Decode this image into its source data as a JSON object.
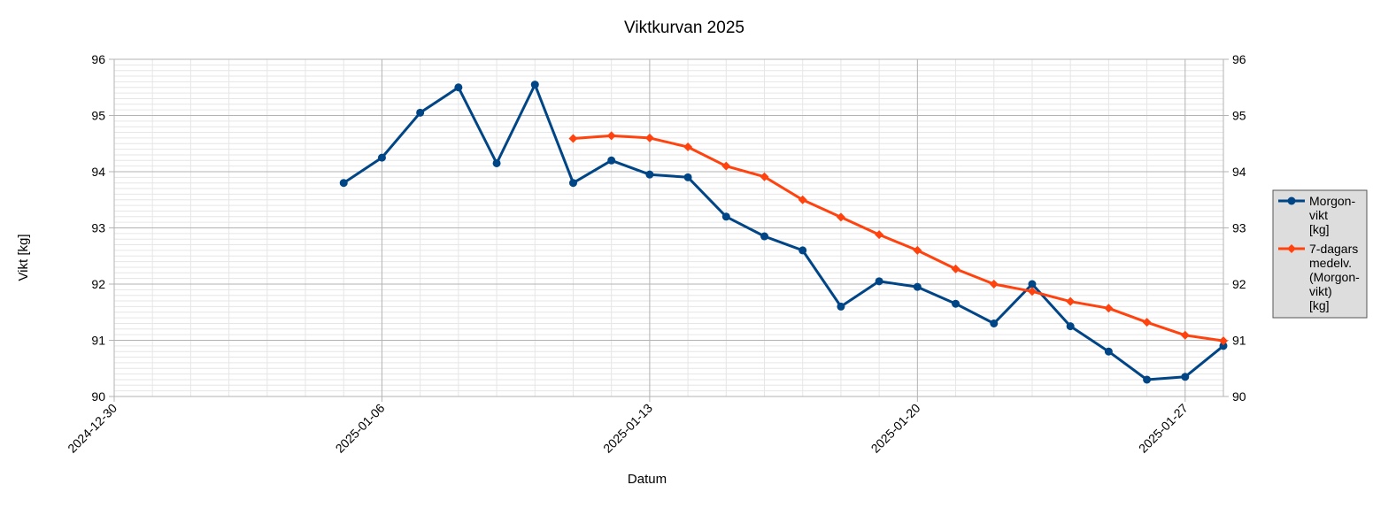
{
  "chart_data": {
    "type": "line",
    "title": "Viktkurvan 2025",
    "xlabel": "Datum",
    "ylabel": "Vikt [kg]",
    "xlim": [
      "2024-12-30",
      "2025-01-28"
    ],
    "ylim": [
      90,
      96
    ],
    "y_major_step": 1,
    "y_minor_step": 0.1,
    "x_minor_step_days": 1,
    "y_ticks": [
      "90",
      "91",
      "92",
      "93",
      "94",
      "95",
      "96"
    ],
    "x_ticks": [
      "2024-12-30",
      "2025-01-06",
      "2025-01-13",
      "2025-01-20",
      "2025-01-27"
    ],
    "grid": true,
    "secondary_y_axis": true,
    "legend_position": "right",
    "series": [
      {
        "name": "Morgon-vikt [kg]",
        "legend_lines": [
          "Morgon-",
          "vikt",
          "[kg]"
        ],
        "color": "#004586",
        "marker": "circle",
        "x": [
          "2025-01-05",
          "2025-01-06",
          "2025-01-07",
          "2025-01-08",
          "2025-01-09",
          "2025-01-10",
          "2025-01-11",
          "2025-01-12",
          "2025-01-13",
          "2025-01-14",
          "2025-01-15",
          "2025-01-16",
          "2025-01-17",
          "2025-01-18",
          "2025-01-19",
          "2025-01-20",
          "2025-01-21",
          "2025-01-22",
          "2025-01-23",
          "2025-01-24",
          "2025-01-25",
          "2025-01-26",
          "2025-01-27",
          "2025-01-28"
        ],
        "values": [
          93.8,
          94.25,
          95.05,
          95.5,
          94.15,
          95.55,
          93.8,
          94.2,
          93.95,
          93.9,
          93.2,
          92.85,
          92.6,
          91.6,
          92.05,
          91.95,
          91.65,
          91.3,
          92.0,
          91.25,
          90.8,
          90.3,
          90.35,
          90.9
        ]
      },
      {
        "name": "7-dagars medelv. (Morgon-vikt) [kg]",
        "legend_lines": [
          "7-dagars",
          "medelv.",
          "(Morgon-",
          "vikt)",
          "[kg]"
        ],
        "color": "#ff420e",
        "marker": "diamond",
        "x": [
          "2025-01-11",
          "2025-01-12",
          "2025-01-13",
          "2025-01-14",
          "2025-01-15",
          "2025-01-16",
          "2025-01-17",
          "2025-01-18",
          "2025-01-19",
          "2025-01-20",
          "2025-01-21",
          "2025-01-22",
          "2025-01-23",
          "2025-01-24",
          "2025-01-25",
          "2025-01-26",
          "2025-01-27",
          "2025-01-28"
        ],
        "values": [
          94.59,
          94.64,
          94.6,
          94.44,
          94.1,
          93.91,
          93.5,
          93.19,
          92.88,
          92.6,
          92.27,
          92.0,
          91.87,
          91.69,
          91.57,
          91.32,
          91.09,
          90.99
        ]
      }
    ]
  }
}
